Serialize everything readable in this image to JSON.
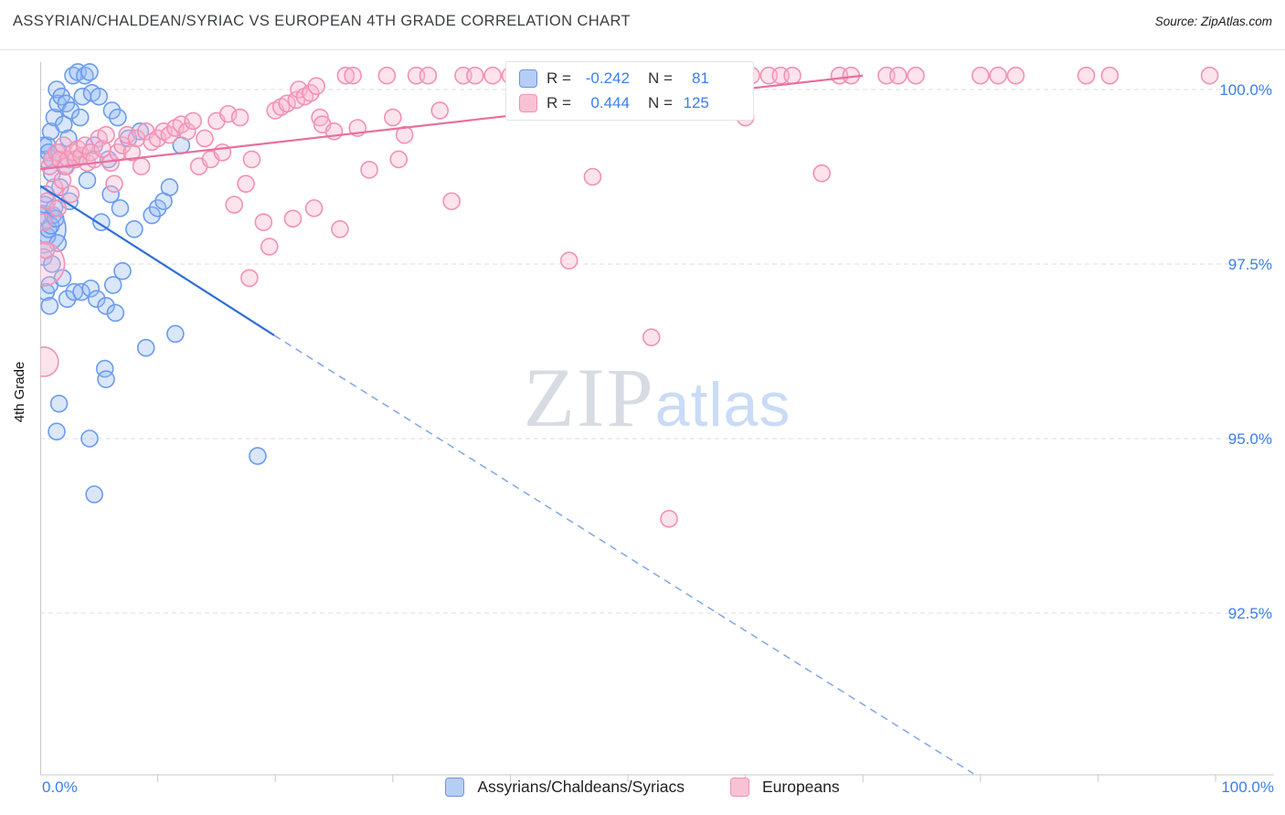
{
  "header": {
    "title": "ASSYRIAN/CHALDEAN/SYRIAC VS EUROPEAN 4TH GRADE CORRELATION CHART",
    "source": "Source: ZipAtlas.com"
  },
  "y_axis_label": "4th Grade",
  "watermark": {
    "zip": "ZIP",
    "atlas": "atlas"
  },
  "legend_box": {
    "rows": [
      {
        "series": "Assyrians/Chaldeans/Syriacs",
        "r_label": "R =",
        "r_value": "-0.242",
        "n_label": "N =",
        "n_value": "81"
      },
      {
        "series": "Europeans",
        "r_label": "R =",
        "r_value": "0.444",
        "n_label": "N =",
        "n_value": "125"
      }
    ]
  },
  "bottom_legend": {
    "items": [
      {
        "label": "Assyrians/Chaldeans/Syriacs",
        "color": "blue"
      },
      {
        "label": "Europeans",
        "color": "pink"
      }
    ]
  },
  "colors": {
    "accent_blue": "#3d7ee8",
    "grid": "#dddddd",
    "axis": "#c9c9c9",
    "blue_stroke": "#6b9bef",
    "blue_fill": "rgba(150,186,243,0.35)",
    "pink_stroke": "#f291b4",
    "pink_fill": "rgba(247,182,206,0.38)"
  },
  "chart_data": {
    "type": "scatter",
    "title": "ASSYRIAN/CHALDEAN/SYRIAC VS EUROPEAN 4TH GRADE CORRELATION CHART",
    "xlabel": "",
    "ylabel": "4th Grade",
    "x_range_pct": [
      0,
      100
    ],
    "y_range_pct": [
      90.2,
      100.4
    ],
    "grid": "horizontal-dashed",
    "legend_position": "top-center",
    "x_tick_labels": [
      "0.0%",
      "100.0%"
    ],
    "y_ticks": [
      {
        "value": 100.0,
        "label": "100.0%"
      },
      {
        "value": 97.5,
        "label": "97.5%"
      },
      {
        "value": 95.0,
        "label": "95.0%"
      },
      {
        "value": 92.5,
        "label": "92.5%"
      }
    ],
    "series": [
      {
        "name": "Assyrians/Chaldeans/Syriacs",
        "R": -0.242,
        "N": 81,
        "stroke": "#6b9bef",
        "fill": "rgba(150,186,243,0.35)",
        "points": [
          [
            0.15,
            98.0,
            26
          ],
          [
            0.2,
            98.2
          ],
          [
            0.3,
            97.6
          ],
          [
            0.3,
            99.2
          ],
          [
            0.4,
            99.0
          ],
          [
            0.4,
            98.35
          ],
          [
            0.5,
            98.5
          ],
          [
            0.5,
            97.1
          ],
          [
            0.6,
            99.2
          ],
          [
            0.6,
            97.9
          ],
          [
            0.7,
            98.0
          ],
          [
            0.7,
            99.1
          ],
          [
            0.8,
            97.2
          ],
          [
            0.8,
            96.9
          ],
          [
            0.9,
            99.4
          ],
          [
            0.9,
            98.05
          ],
          [
            1.0,
            98.8
          ],
          [
            1.0,
            97.5
          ],
          [
            1.0,
            99.0
          ],
          [
            1.1,
            98.2
          ],
          [
            1.2,
            99.6
          ],
          [
            1.2,
            98.3
          ],
          [
            1.3,
            98.15
          ],
          [
            1.4,
            100.0
          ],
          [
            1.4,
            95.1
          ],
          [
            1.5,
            99.8
          ],
          [
            1.5,
            97.8
          ],
          [
            1.6,
            99.1
          ],
          [
            1.6,
            95.5
          ],
          [
            1.7,
            98.6
          ],
          [
            1.8,
            99.9
          ],
          [
            1.9,
            97.3
          ],
          [
            2.0,
            99.5
          ],
          [
            2.1,
            98.9
          ],
          [
            2.2,
            99.8
          ],
          [
            2.3,
            97.0
          ],
          [
            2.4,
            99.3
          ],
          [
            2.5,
            98.4
          ],
          [
            2.6,
            99.7
          ],
          [
            2.8,
            100.2
          ],
          [
            2.9,
            97.1
          ],
          [
            3.0,
            99.0
          ],
          [
            3.2,
            100.25
          ],
          [
            3.4,
            99.6
          ],
          [
            3.5,
            97.1
          ],
          [
            3.6,
            99.9
          ],
          [
            3.8,
            100.2
          ],
          [
            4.0,
            98.7
          ],
          [
            4.2,
            100.25
          ],
          [
            4.2,
            95.0
          ],
          [
            4.3,
            97.15
          ],
          [
            4.4,
            99.95
          ],
          [
            4.6,
            99.2
          ],
          [
            4.6,
            94.2
          ],
          [
            4.8,
            97.0
          ],
          [
            5.0,
            99.9
          ],
          [
            5.2,
            98.1
          ],
          [
            5.5,
            96.0
          ],
          [
            5.6,
            95.85
          ],
          [
            5.6,
            96.9
          ],
          [
            5.8,
            99.0
          ],
          [
            6.0,
            98.5
          ],
          [
            6.1,
            99.7
          ],
          [
            6.2,
            97.2
          ],
          [
            6.4,
            96.8
          ],
          [
            6.6,
            99.6
          ],
          [
            6.8,
            98.3
          ],
          [
            7.0,
            97.4
          ],
          [
            7.5,
            99.3
          ],
          [
            8.0,
            98.0
          ],
          [
            8.5,
            99.4
          ],
          [
            9.0,
            96.3
          ],
          [
            9.5,
            98.2
          ],
          [
            10.0,
            98.3
          ],
          [
            10.5,
            98.4
          ],
          [
            11.0,
            98.6
          ],
          [
            11.5,
            96.5
          ],
          [
            12.0,
            99.2
          ],
          [
            18.5,
            94.75
          ]
        ]
      },
      {
        "name": "Europeans",
        "R": 0.444,
        "N": 125,
        "stroke": "#f291b4",
        "fill": "rgba(247,182,206,0.38)",
        "points": [
          [
            0.2,
            97.5,
            24
          ],
          [
            0.3,
            96.1,
            16
          ],
          [
            0.3,
            98.1
          ],
          [
            0.5,
            97.7
          ],
          [
            0.6,
            98.4
          ],
          [
            0.8,
            98.9
          ],
          [
            1.0,
            99.0
          ],
          [
            1.2,
            98.6
          ],
          [
            1.4,
            99.1
          ],
          [
            1.5,
            98.3
          ],
          [
            1.7,
            99.0
          ],
          [
            1.9,
            98.7
          ],
          [
            2.0,
            99.2
          ],
          [
            2.2,
            98.9
          ],
          [
            2.4,
            99.0
          ],
          [
            2.6,
            98.5
          ],
          [
            2.8,
            99.1
          ],
          [
            3.0,
            99.0
          ],
          [
            3.2,
            99.15
          ],
          [
            3.5,
            99.05
          ],
          [
            3.8,
            99.2
          ],
          [
            4.0,
            98.95
          ],
          [
            4.3,
            99.1
          ],
          [
            4.6,
            99.0
          ],
          [
            5.0,
            99.3
          ],
          [
            5.3,
            99.15
          ],
          [
            5.6,
            99.35
          ],
          [
            6.0,
            98.95
          ],
          [
            6.3,
            98.65
          ],
          [
            6.6,
            99.1
          ],
          [
            7.0,
            99.2
          ],
          [
            7.4,
            99.35
          ],
          [
            7.8,
            99.1
          ],
          [
            8.2,
            99.3
          ],
          [
            8.6,
            98.9
          ],
          [
            9.0,
            99.4
          ],
          [
            9.5,
            99.25
          ],
          [
            10.0,
            99.3
          ],
          [
            10.5,
            99.4
          ],
          [
            11.0,
            99.35
          ],
          [
            11.5,
            99.45
          ],
          [
            12.0,
            99.5
          ],
          [
            12.5,
            99.4
          ],
          [
            13.0,
            99.55
          ],
          [
            13.5,
            98.9
          ],
          [
            14.0,
            99.3
          ],
          [
            14.5,
            99.0
          ],
          [
            15.0,
            99.55
          ],
          [
            15.5,
            99.1
          ],
          [
            16.0,
            99.65
          ],
          [
            16.5,
            98.35
          ],
          [
            17.0,
            99.6
          ],
          [
            17.5,
            98.65
          ],
          [
            17.8,
            97.3
          ],
          [
            18.0,
            99.0
          ],
          [
            19.0,
            98.1
          ],
          [
            19.5,
            97.75
          ],
          [
            20.0,
            99.7
          ],
          [
            20.5,
            99.75
          ],
          [
            21.0,
            99.8
          ],
          [
            21.5,
            98.15
          ],
          [
            21.8,
            99.85
          ],
          [
            22.0,
            100.0
          ],
          [
            22.5,
            99.9
          ],
          [
            23.0,
            99.95
          ],
          [
            23.3,
            98.3
          ],
          [
            23.5,
            100.05
          ],
          [
            23.8,
            99.6
          ],
          [
            24.0,
            99.5
          ],
          [
            25.0,
            99.4
          ],
          [
            25.5,
            98.0
          ],
          [
            26.0,
            100.2
          ],
          [
            26.6,
            100.2
          ],
          [
            27.0,
            99.45
          ],
          [
            28.0,
            98.85
          ],
          [
            29.5,
            100.2
          ],
          [
            30.0,
            99.6
          ],
          [
            30.5,
            99.0
          ],
          [
            31.0,
            99.35
          ],
          [
            32.0,
            100.2
          ],
          [
            33.0,
            100.2
          ],
          [
            34.0,
            99.7
          ],
          [
            35.0,
            98.4
          ],
          [
            36.0,
            100.2
          ],
          [
            37.0,
            100.2
          ],
          [
            38.5,
            100.2
          ],
          [
            40.0,
            100.2
          ],
          [
            41.0,
            100.2
          ],
          [
            42.0,
            100.2
          ],
          [
            43.0,
            100.2
          ],
          [
            44.0,
            100.2
          ],
          [
            45.0,
            97.55
          ],
          [
            45.5,
            100.2
          ],
          [
            46.5,
            100.2
          ],
          [
            47.0,
            98.75
          ],
          [
            48.0,
            100.2
          ],
          [
            50.0,
            100.2
          ],
          [
            52.0,
            96.45
          ],
          [
            52.5,
            100.2
          ],
          [
            53.5,
            93.85
          ],
          [
            54.5,
            100.2
          ],
          [
            55.5,
            100.2
          ],
          [
            56.5,
            100.2
          ],
          [
            57.5,
            100.2
          ],
          [
            58.5,
            100.2
          ],
          [
            60.0,
            99.6
          ],
          [
            60.5,
            100.2
          ],
          [
            62.0,
            100.2
          ],
          [
            63.0,
            100.2
          ],
          [
            64.0,
            100.2
          ],
          [
            66.5,
            98.8
          ],
          [
            68.0,
            100.2
          ],
          [
            69.0,
            100.2
          ],
          [
            72.0,
            100.2
          ],
          [
            73.0,
            100.2
          ],
          [
            74.5,
            100.2
          ],
          [
            80.0,
            100.2
          ],
          [
            81.5,
            100.2
          ],
          [
            83.0,
            100.2
          ],
          [
            89.0,
            100.2
          ],
          [
            91.0,
            100.2
          ],
          [
            99.5,
            100.2
          ]
        ]
      }
    ],
    "trend_lines": [
      {
        "series": "Assyrians/Chaldeans/Syriacs",
        "style": "solid",
        "from": [
          0,
          98.62
        ],
        "to": [
          19.9,
          96.48
        ],
        "color": "#2f6fd6",
        "width": 2.2
      },
      {
        "series": "Assyrians/Chaldeans/Syriacs",
        "style": "dashed",
        "from": [
          19.9,
          96.48
        ],
        "to": [
          79.4,
          90.2
        ],
        "color": "#7fa6e8",
        "width": 1.5
      },
      {
        "series": "Europeans",
        "style": "solid",
        "from": [
          0,
          98.86
        ],
        "to": [
          70,
          100.2
        ],
        "color": "#e8709e",
        "width": 2.2
      }
    ]
  }
}
